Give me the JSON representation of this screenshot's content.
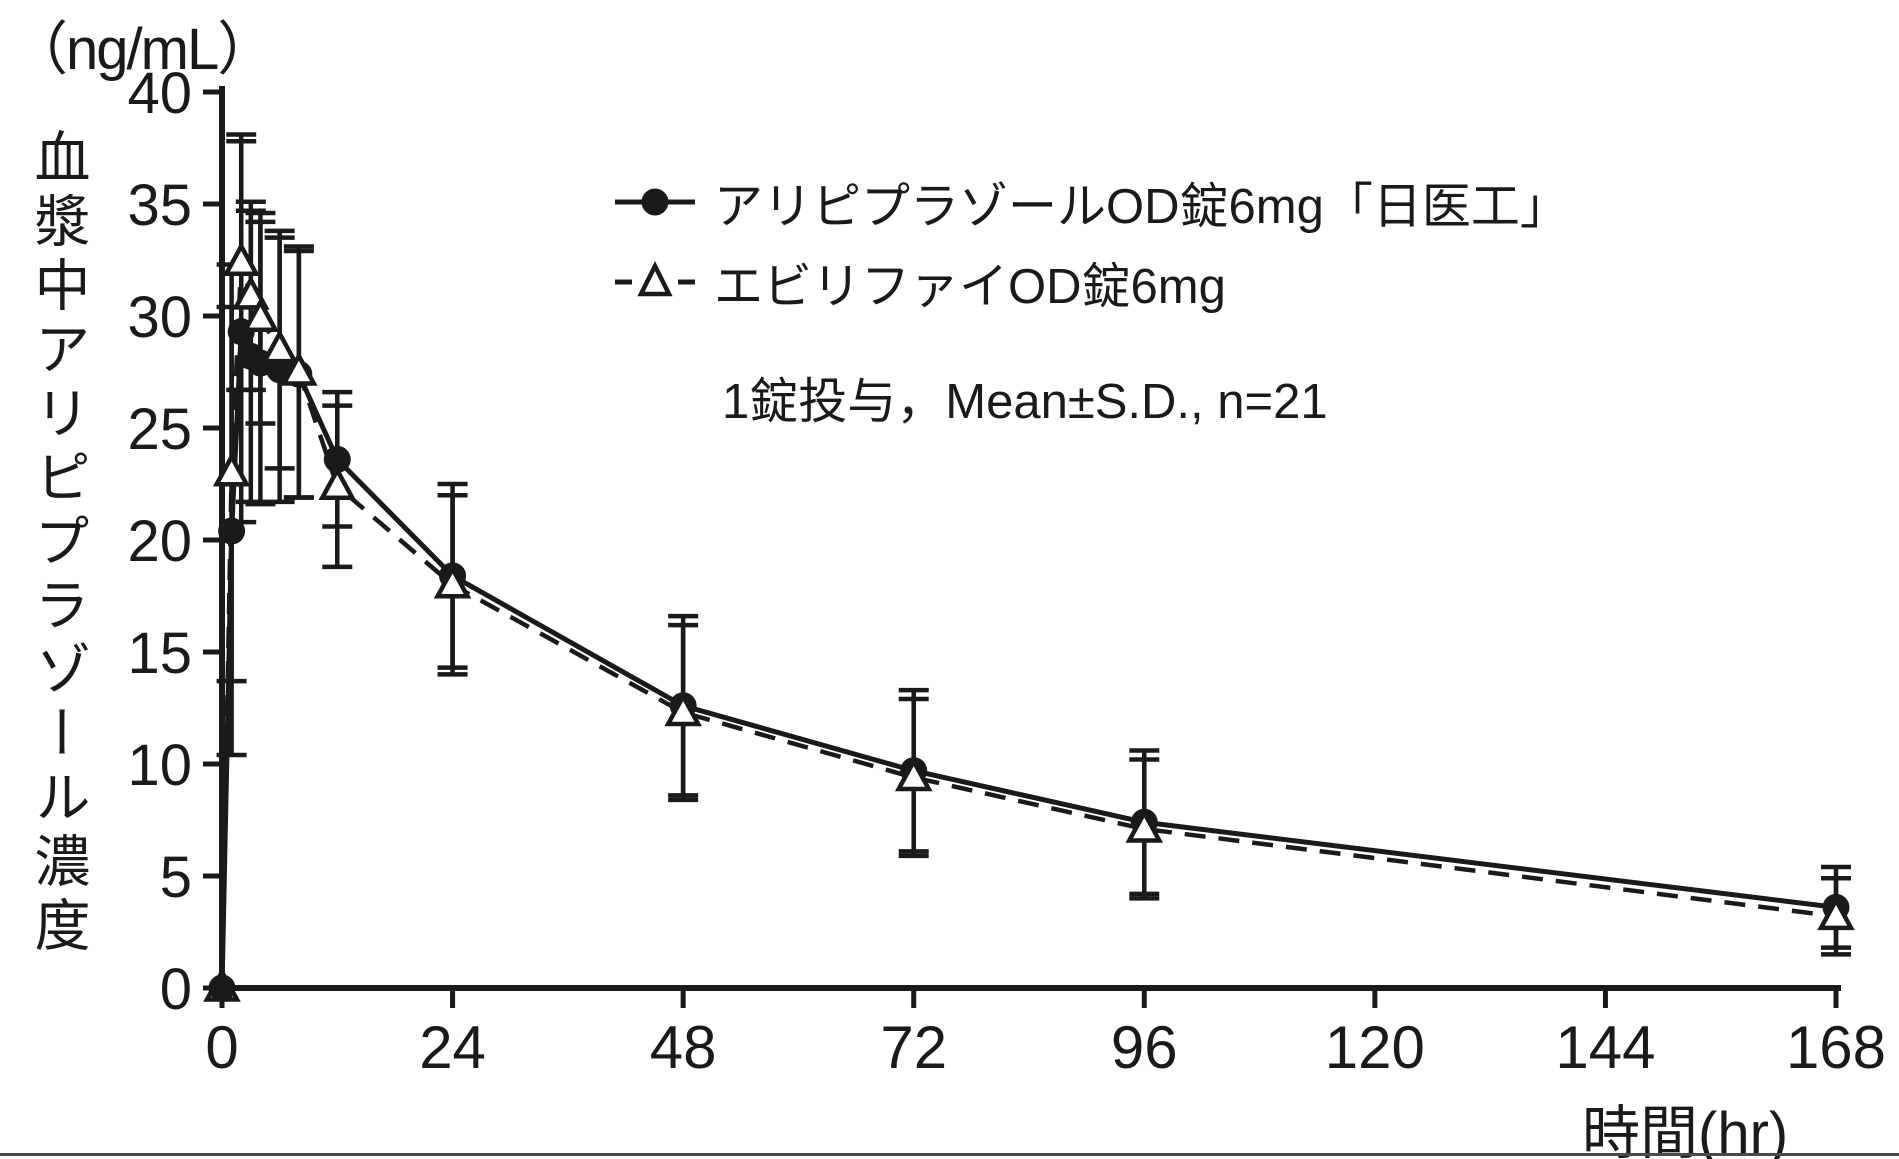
{
  "figure": {
    "y_unit_label": "（ng/mL）",
    "y_axis_label": "血漿中アリピプラゾール濃度",
    "x_axis_label": "時間(hr)",
    "annotation": "1錠投与，Mean±S.D., n=21",
    "colors": {
      "ink": "#1a1a1a",
      "background": "#ffffff"
    }
  },
  "legend": {
    "items": [
      {
        "label": "アリピプラゾールOD錠6mg「日医工」",
        "marker": "filled-circle",
        "line": "solid"
      },
      {
        "label": "エビリファイOD錠6mg",
        "marker": "open-triangle",
        "line": "dashed"
      }
    ]
  },
  "chart_data": {
    "type": "line",
    "title": "",
    "xlabel": "時間(hr)",
    "ylabel": "血漿中アリピプラゾール濃度",
    "y_unit": "（ng/mL）",
    "annotation": "1錠投与，Mean±S.D., n=21",
    "xlim": [
      0,
      168
    ],
    "ylim": [
      0,
      40
    ],
    "x_ticks": [
      0,
      24,
      48,
      72,
      96,
      120,
      144,
      168
    ],
    "y_ticks": [
      0,
      5,
      10,
      15,
      20,
      25,
      30,
      35,
      40
    ],
    "grid": false,
    "legend_position": "upper-right-inside",
    "error_bars": "±S.D.",
    "n": 21,
    "series": [
      {
        "name": "アリピプラゾールOD錠6mg「日医工」",
        "marker": "filled-circle",
        "line": "solid",
        "x": [
          0,
          1,
          2,
          3,
          4,
          6,
          8,
          12,
          24,
          48,
          72,
          96,
          168
        ],
        "y": [
          0,
          20.4,
          29.3,
          28.2,
          27.9,
          27.6,
          27.4,
          23.6,
          18.4,
          12.6,
          9.7,
          7.4,
          3.6
        ],
        "sd": [
          0,
          10.0,
          8.5,
          6.5,
          6.3,
          5.9,
          5.5,
          3.0,
          4.1,
          4.0,
          3.6,
          3.2,
          1.8
        ]
      },
      {
        "name": "エビリファイOD錠6mg",
        "marker": "open-triangle",
        "line": "dashed",
        "x": [
          0,
          1,
          2,
          3,
          4,
          6,
          8,
          12,
          24,
          48,
          72,
          96,
          168
        ],
        "y": [
          0,
          23.0,
          32.4,
          30.9,
          29.9,
          28.5,
          27.5,
          22.4,
          18.0,
          12.3,
          9.4,
          7.1,
          3.2
        ],
        "sd": [
          0,
          9.3,
          5.7,
          4.2,
          4.7,
          5.3,
          5.6,
          3.6,
          4.0,
          3.9,
          3.5,
          3.1,
          1.7
        ]
      }
    ]
  }
}
